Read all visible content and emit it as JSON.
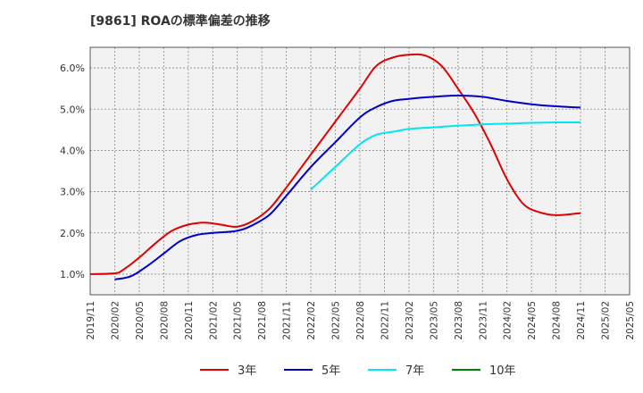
{
  "chart_data": {
    "type": "line",
    "title": "[9861]  ROAの標準偏差の推移",
    "xlabel": "",
    "ylabel": "",
    "x_ticks": [
      "2019/11",
      "2020/02",
      "2020/05",
      "2020/08",
      "2020/11",
      "2021/02",
      "2021/05",
      "2021/08",
      "2021/11",
      "2022/02",
      "2022/05",
      "2022/08",
      "2022/11",
      "2023/02",
      "2023/05",
      "2023/08",
      "2023/11",
      "2024/02",
      "2024/05",
      "2024/08",
      "2024/11",
      "2025/02",
      "2025/05"
    ],
    "y_ticks": [
      "1.0%",
      "2.0%",
      "3.0%",
      "4.0%",
      "5.0%",
      "6.0%"
    ],
    "ylim": [
      0.5,
      6.5
    ],
    "grid": true,
    "legend_position": "bottom",
    "series": [
      {
        "name": "3年",
        "color": "#e00000",
        "points": [
          [
            "2019/11",
            1.0
          ],
          [
            "2020/02",
            1.02
          ],
          [
            "2020/03",
            1.1
          ],
          [
            "2020/05",
            1.4
          ],
          [
            "2020/07",
            1.75
          ],
          [
            "2020/09",
            2.05
          ],
          [
            "2020/11",
            2.2
          ],
          [
            "2021/01",
            2.25
          ],
          [
            "2021/03",
            2.2
          ],
          [
            "2021/05",
            2.15
          ],
          [
            "2021/07",
            2.3
          ],
          [
            "2021/09",
            2.6
          ],
          [
            "2021/11",
            3.1
          ],
          [
            "2022/02",
            3.9
          ],
          [
            "2022/05",
            4.7
          ],
          [
            "2022/08",
            5.5
          ],
          [
            "2022/10",
            6.05
          ],
          [
            "2022/12",
            6.25
          ],
          [
            "2023/02",
            6.32
          ],
          [
            "2023/04",
            6.3
          ],
          [
            "2023/06",
            6.05
          ],
          [
            "2023/08",
            5.5
          ],
          [
            "2023/10",
            4.9
          ],
          [
            "2023/12",
            4.15
          ],
          [
            "2024/02",
            3.3
          ],
          [
            "2024/04",
            2.7
          ],
          [
            "2024/06",
            2.5
          ],
          [
            "2024/08",
            2.43
          ],
          [
            "2024/11",
            2.48
          ]
        ]
      },
      {
        "name": "5年",
        "color": "#0000c8",
        "points": [
          [
            "2020/02",
            0.87
          ],
          [
            "2020/04",
            0.95
          ],
          [
            "2020/06",
            1.2
          ],
          [
            "2020/08",
            1.5
          ],
          [
            "2020/10",
            1.8
          ],
          [
            "2020/12",
            1.95
          ],
          [
            "2021/02",
            2.0
          ],
          [
            "2021/05",
            2.05
          ],
          [
            "2021/07",
            2.2
          ],
          [
            "2021/09",
            2.45
          ],
          [
            "2021/11",
            2.9
          ],
          [
            "2022/02",
            3.6
          ],
          [
            "2022/05",
            4.2
          ],
          [
            "2022/08",
            4.8
          ],
          [
            "2022/10",
            5.05
          ],
          [
            "2022/12",
            5.2
          ],
          [
            "2023/02",
            5.25
          ],
          [
            "2023/05",
            5.3
          ],
          [
            "2023/08",
            5.33
          ],
          [
            "2023/11",
            5.3
          ],
          [
            "2024/02",
            5.2
          ],
          [
            "2024/05",
            5.12
          ],
          [
            "2024/08",
            5.07
          ],
          [
            "2024/11",
            5.04
          ]
        ]
      },
      {
        "name": "7年",
        "color": "#00e5ee",
        "points": [
          [
            "2022/02",
            3.05
          ],
          [
            "2022/05",
            3.6
          ],
          [
            "2022/08",
            4.15
          ],
          [
            "2022/10",
            4.38
          ],
          [
            "2022/12",
            4.45
          ],
          [
            "2023/02",
            4.52
          ],
          [
            "2023/05",
            4.56
          ],
          [
            "2023/08",
            4.6
          ],
          [
            "2023/11",
            4.63
          ],
          [
            "2024/02",
            4.65
          ],
          [
            "2024/05",
            4.67
          ],
          [
            "2024/08",
            4.68
          ],
          [
            "2024/11",
            4.68
          ]
        ]
      },
      {
        "name": "10年",
        "color": "#008000",
        "points": []
      }
    ]
  }
}
